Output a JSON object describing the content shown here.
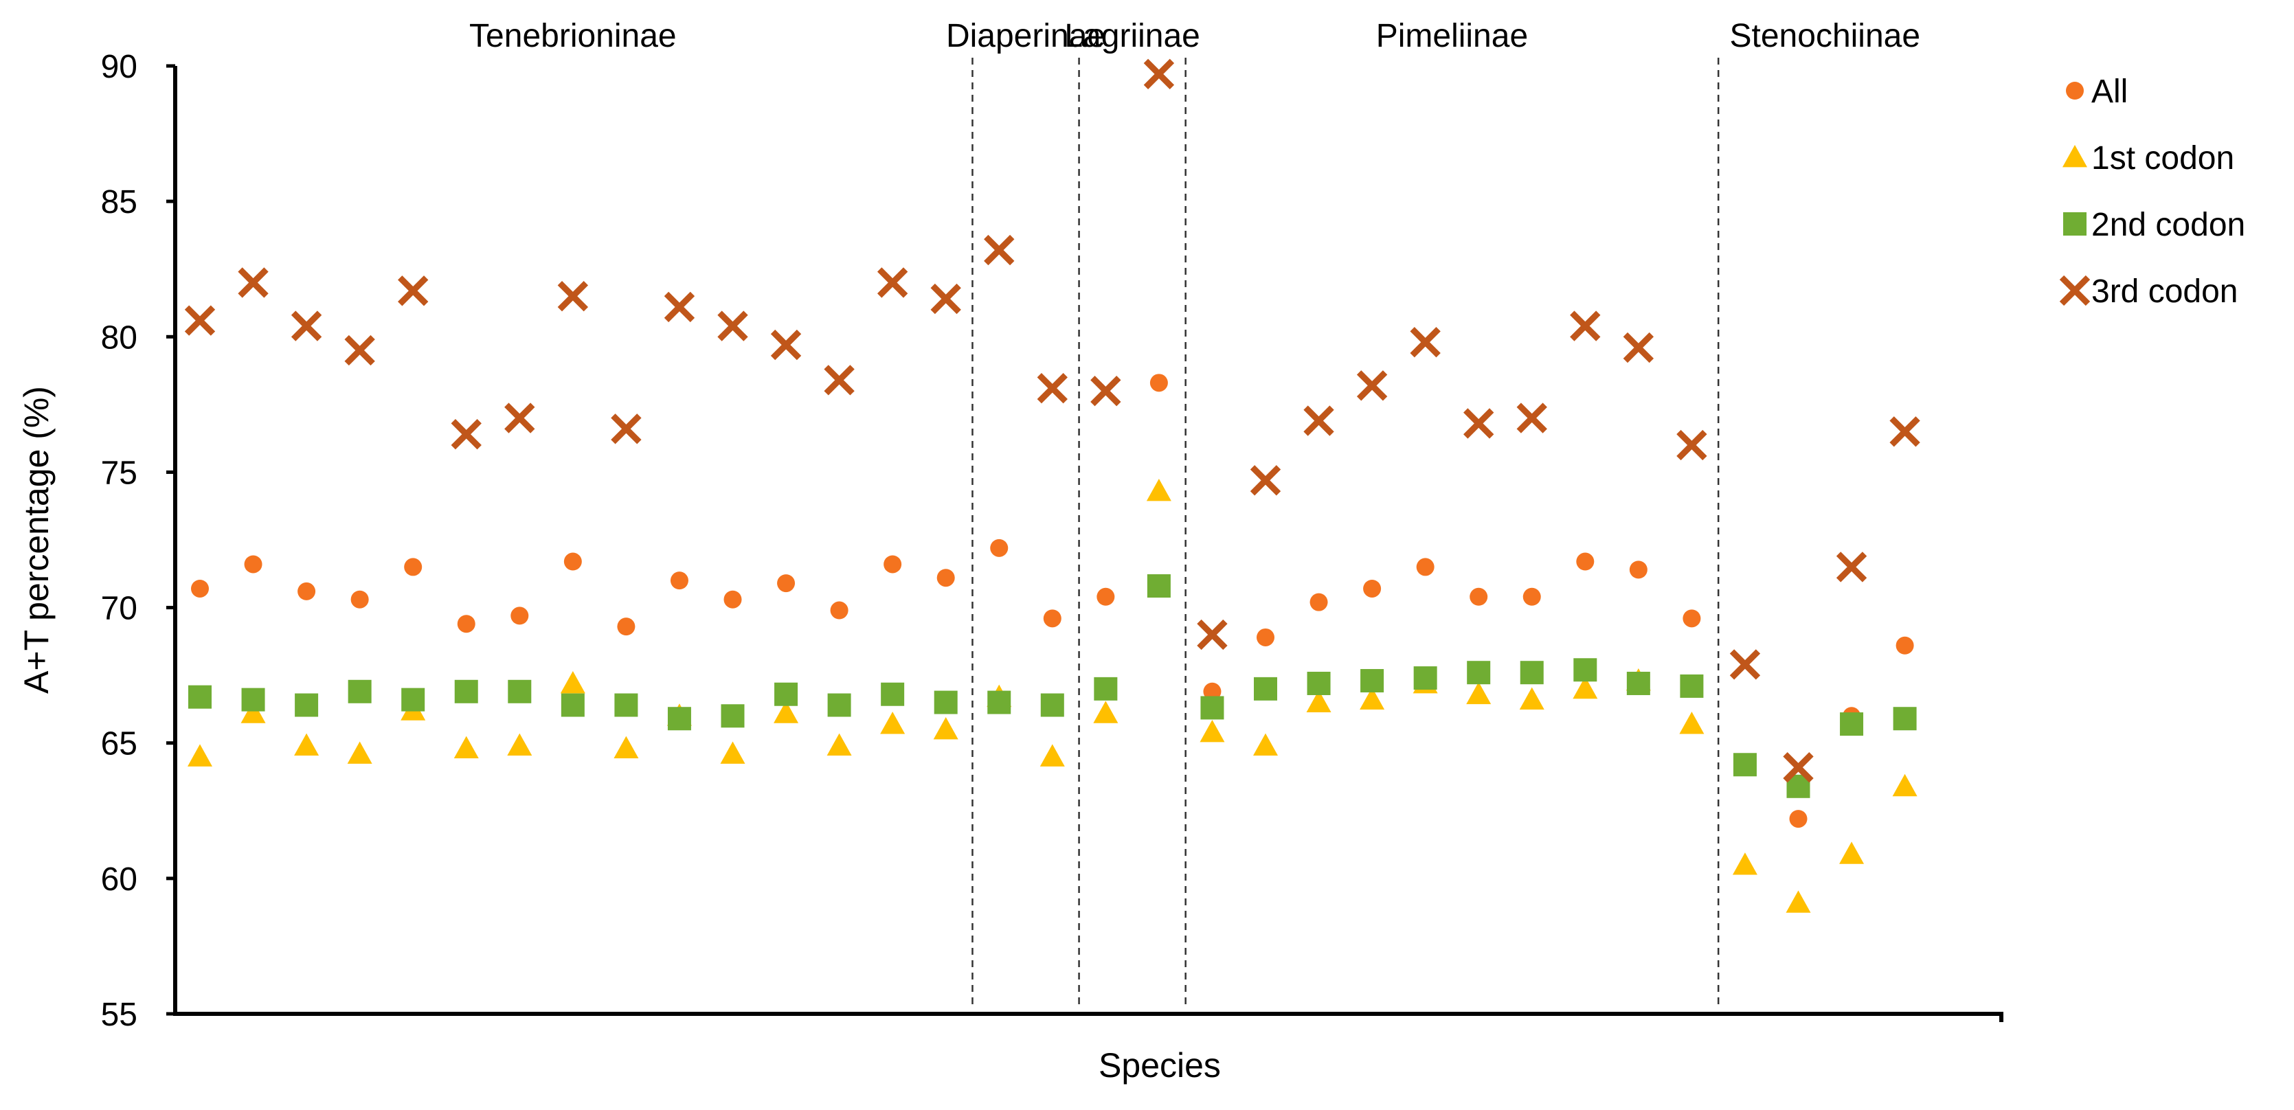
{
  "chart_data": {
    "type": "scatter",
    "title": "",
    "xlabel": "Species",
    "ylabel": "A+T percentage (%)",
    "ylim": [
      55,
      90
    ],
    "yticks": [
      55,
      60,
      65,
      70,
      75,
      80,
      85,
      90
    ],
    "grid": false,
    "legend_position": "right",
    "groups": [
      {
        "name": "Tenebrioninae",
        "start": 1,
        "end": 15
      },
      {
        "name": "Diaperinae",
        "start": 16,
        "end": 17
      },
      {
        "name": "Lagriinae",
        "start": 18,
        "end": 19
      },
      {
        "name": "Pimeliinae",
        "start": 20,
        "end": 29
      },
      {
        "name": "Stenochiinae",
        "start": 30,
        "end": 33
      }
    ],
    "x": [
      1,
      2,
      3,
      4,
      5,
      6,
      7,
      8,
      9,
      10,
      11,
      12,
      13,
      14,
      15,
      16,
      17,
      18,
      19,
      20,
      21,
      22,
      23,
      24,
      25,
      26,
      27,
      28,
      29,
      30,
      31,
      32,
      33
    ],
    "series": [
      {
        "name": "All",
        "marker": "circle",
        "color": "#F4731F",
        "values": [
          70.7,
          71.6,
          70.6,
          70.3,
          71.5,
          69.4,
          69.7,
          71.7,
          69.3,
          71.0,
          70.3,
          70.9,
          69.9,
          71.6,
          71.1,
          72.2,
          69.6,
          70.4,
          78.3,
          66.9,
          68.9,
          70.2,
          70.7,
          71.5,
          70.4,
          70.4,
          71.7,
          71.4,
          69.6,
          null,
          62.2,
          66.0,
          68.6
        ]
      },
      {
        "name": "1st codon",
        "marker": "triangle",
        "color": "#FFBF00",
        "values": [
          64.5,
          66.1,
          64.9,
          64.6,
          66.2,
          64.8,
          64.9,
          67.2,
          64.8,
          66.0,
          64.6,
          66.1,
          64.9,
          65.7,
          65.5,
          66.7,
          64.5,
          66.1,
          74.3,
          65.4,
          64.9,
          66.5,
          66.6,
          67.2,
          66.8,
          66.6,
          67.0,
          67.3,
          65.7,
          60.5,
          59.1,
          60.9,
          63.4
        ]
      },
      {
        "name": "2nd codon",
        "marker": "square",
        "color": "#70AD33",
        "values": [
          66.7,
          66.6,
          66.4,
          66.9,
          66.6,
          66.9,
          66.9,
          66.4,
          66.4,
          65.9,
          66.0,
          66.8,
          66.4,
          66.8,
          66.5,
          66.5,
          66.4,
          67.0,
          70.8,
          66.3,
          67.0,
          67.2,
          67.3,
          67.4,
          67.6,
          67.6,
          67.7,
          67.2,
          67.1,
          64.2,
          63.4,
          65.7,
          65.9
        ]
      },
      {
        "name": "3rd codon",
        "marker": "x",
        "color": "#C0561A",
        "values": [
          80.6,
          82.0,
          80.4,
          79.5,
          81.7,
          76.4,
          77.0,
          81.5,
          76.6,
          81.1,
          80.4,
          79.7,
          78.4,
          82.0,
          81.4,
          83.2,
          78.1,
          78.0,
          89.7,
          69.0,
          74.7,
          76.9,
          78.2,
          79.8,
          76.8,
          77.0,
          80.4,
          79.6,
          76.0,
          67.9,
          64.1,
          71.5,
          76.5
        ]
      }
    ]
  }
}
